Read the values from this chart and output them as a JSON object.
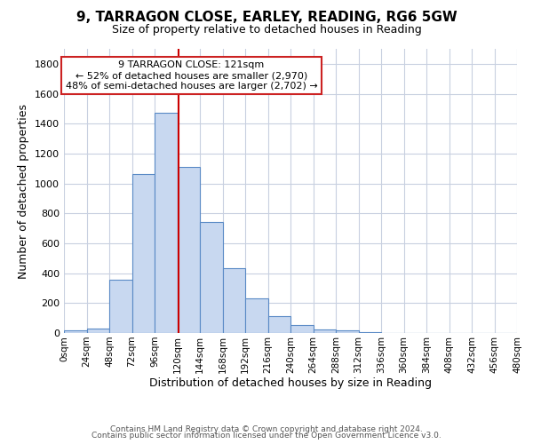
{
  "title": "9, TARRAGON CLOSE, EARLEY, READING, RG6 5GW",
  "subtitle": "Size of property relative to detached houses in Reading",
  "xlabel": "Distribution of detached houses by size in Reading",
  "ylabel": "Number of detached properties",
  "bar_color": "#c8d8f0",
  "bar_edge_color": "#5a8ac6",
  "vline_color": "#cc0000",
  "vline_x": 121,
  "annotation_title": "9 TARRAGON CLOSE: 121sqm",
  "annotation_line1": "← 52% of detached houses are smaller (2,970)",
  "annotation_line2": "48% of semi-detached houses are larger (2,702) →",
  "footer_line1": "Contains HM Land Registry data © Crown copyright and database right 2024.",
  "footer_line2": "Contains public sector information licensed under the Open Government Licence v3.0.",
  "bin_edges": [
    0,
    24,
    48,
    72,
    96,
    120,
    144,
    168,
    192,
    216,
    240,
    264,
    288,
    312,
    336,
    360,
    384,
    408,
    432,
    456,
    480
  ],
  "counts": [
    15,
    30,
    355,
    1060,
    1470,
    1110,
    740,
    435,
    230,
    110,
    55,
    25,
    15,
    5,
    2,
    1,
    0,
    0,
    0,
    0
  ],
  "ylim": [
    0,
    1900
  ],
  "xlim": [
    0,
    480
  ],
  "yticks": [
    0,
    200,
    400,
    600,
    800,
    1000,
    1200,
    1400,
    1600,
    1800
  ],
  "xtick_labels": [
    "0sqm",
    "24sqm",
    "48sqm",
    "72sqm",
    "96sqm",
    "120sqm",
    "144sqm",
    "168sqm",
    "192sqm",
    "216sqm",
    "240sqm",
    "264sqm",
    "288sqm",
    "312sqm",
    "336sqm",
    "360sqm",
    "384sqm",
    "408sqm",
    "432sqm",
    "456sqm",
    "480sqm"
  ],
  "background_color": "#ffffff",
  "grid_color": "#c8d0e0",
  "title_fontsize": 11,
  "subtitle_fontsize": 9,
  "xlabel_fontsize": 9,
  "ylabel_fontsize": 9,
  "annotation_fontsize": 8,
  "footer_fontsize": 6.5
}
